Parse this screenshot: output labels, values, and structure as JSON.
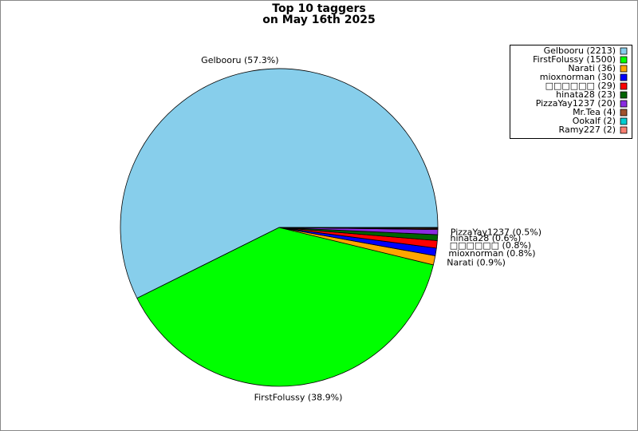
{
  "chart_data": {
    "type": "pie",
    "title": "Top 10 taggers",
    "subtitle": "on May 16th 2025",
    "values": [
      2213,
      1500,
      36,
      30,
      29,
      23,
      20,
      4,
      2,
      2
    ],
    "colors": [
      "#87ceeb",
      "#00ff00",
      "#ffa500",
      "#0000ff",
      "#ff0000",
      "#006400",
      "#8a2be2",
      "#a0522d",
      "#00ced1",
      "#fa8072"
    ],
    "legend_labels": [
      "Gelbooru (2213)",
      "FirstFolussy (1500)",
      "Narati (36)",
      "mioxnorman (30)",
      "□□□□□□ (29)",
      "hinata28 (23)",
      "PizzaYay1237 (20)",
      "Mr.Tea (4)",
      "Ookalf (2)",
      "Ramy227 (2)"
    ],
    "slice_labels": [
      "Gelbooru (57.3%)",
      "FirstFolussy (38.9%)",
      "Narati (0.9%)",
      "mioxnorman (0.8%)",
      "□□□□□□ (0.8%)",
      "hinata28 (0.6%)",
      "PizzaYay1237 (0.5%)",
      null,
      null,
      null
    ],
    "legend": "upper right"
  }
}
